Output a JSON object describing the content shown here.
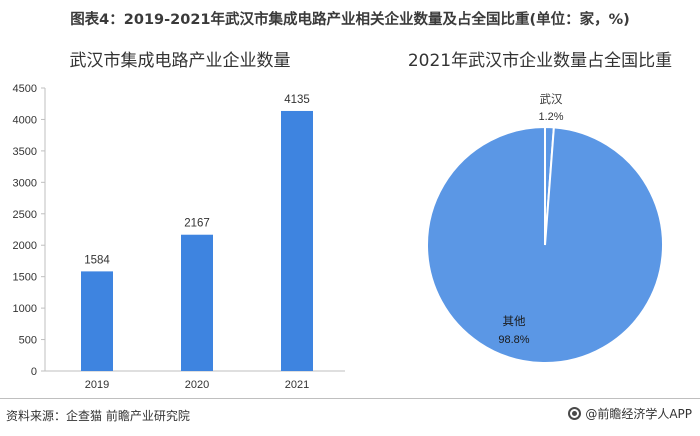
{
  "figure_title": "图表4：2019-2021年武汉市集成电路产业相关企业数量及占全国比重(单位：家，%)",
  "source": "资料来源：企查猫 前瞻产业研究院",
  "brand": "@前瞻经济学人APP",
  "colors": {
    "bar": "#3e84e0",
    "pie_main": "#5b97e5",
    "pie_edge": "#ffffff",
    "axis": "#bfbfbf"
  },
  "chart_data": [
    {
      "type": "bar",
      "title": "武汉市集成电路产业企业数量",
      "categories": [
        "2019",
        "2020",
        "2021"
      ],
      "values": [
        1584,
        2167,
        4135
      ],
      "data_labels": [
        "1584",
        "2167",
        "4135"
      ],
      "ylim": [
        0,
        4500
      ],
      "yticks": [
        0,
        500,
        1000,
        1500,
        2000,
        2500,
        3000,
        3500,
        4000,
        4500
      ],
      "ytick_labels": [
        "0",
        "500",
        "1000",
        "1500",
        "2000",
        "2500",
        "3000",
        "3500",
        "4000",
        "4500"
      ],
      "xlabel": "",
      "ylabel": "",
      "grid": false
    },
    {
      "type": "pie",
      "title": "2021年武汉市企业数量占全国比重",
      "slices": [
        {
          "label": "武汉",
          "value": 1.2,
          "value_label": "1.2%"
        },
        {
          "label": "其他",
          "value": 98.8,
          "value_label": "98.8%"
        }
      ]
    }
  ]
}
